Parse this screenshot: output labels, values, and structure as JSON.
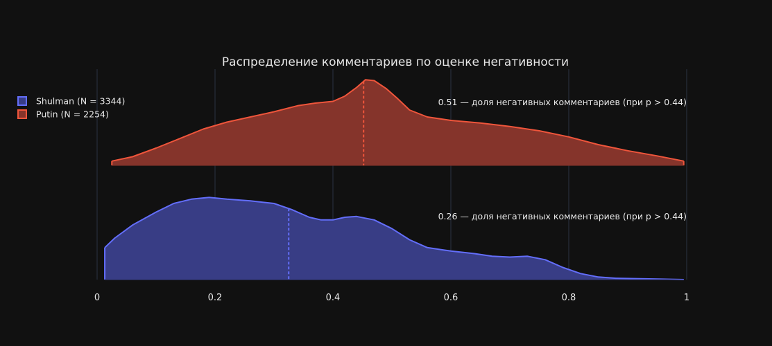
{
  "chart_data": {
    "type": "area",
    "title": "Распределение комментариев по оценке негативности",
    "xlabel": "",
    "ylabel": "",
    "xlim": [
      0,
      1
    ],
    "x_ticks": [
      {
        "value": 0,
        "label": "0"
      },
      {
        "value": 0.2,
        "label": "0.2"
      },
      {
        "value": 0.4,
        "label": "0.4"
      },
      {
        "value": 0.6,
        "label": "0.6"
      },
      {
        "value": 0.8,
        "label": "0.8"
      },
      {
        "value": 1,
        "label": "1"
      }
    ],
    "grid": true,
    "legend_position": "left",
    "series": [
      {
        "name": "Shulman (N = 3344)",
        "line_color": "#636efa",
        "fill_color": "#383d85",
        "mean": 0.325,
        "annotation": "0.26 — доля негативных комментариев (при p > 0.44)",
        "points": [
          [
            0.013,
            0.37
          ],
          [
            0.03,
            0.48
          ],
          [
            0.06,
            0.63
          ],
          [
            0.1,
            0.78
          ],
          [
            0.13,
            0.88
          ],
          [
            0.16,
            0.93
          ],
          [
            0.19,
            0.95
          ],
          [
            0.22,
            0.93
          ],
          [
            0.26,
            0.91
          ],
          [
            0.3,
            0.88
          ],
          [
            0.33,
            0.81
          ],
          [
            0.36,
            0.72
          ],
          [
            0.38,
            0.69
          ],
          [
            0.4,
            0.69
          ],
          [
            0.42,
            0.72
          ],
          [
            0.44,
            0.73
          ],
          [
            0.47,
            0.69
          ],
          [
            0.5,
            0.59
          ],
          [
            0.53,
            0.46
          ],
          [
            0.56,
            0.37
          ],
          [
            0.6,
            0.33
          ],
          [
            0.64,
            0.3
          ],
          [
            0.67,
            0.27
          ],
          [
            0.7,
            0.26
          ],
          [
            0.73,
            0.27
          ],
          [
            0.76,
            0.23
          ],
          [
            0.79,
            0.14
          ],
          [
            0.82,
            0.07
          ],
          [
            0.85,
            0.03
          ],
          [
            0.88,
            0.015
          ],
          [
            0.92,
            0.01
          ],
          [
            0.96,
            0.005
          ],
          [
            0.995,
            0.0
          ]
        ]
      },
      {
        "name": "Putin (N = 2254)",
        "line_color": "#ef553b",
        "fill_color": "#85342b",
        "mean": 0.452,
        "annotation": "0.51 — доля негативных комментариев (при p > 0.44)",
        "points": [
          [
            0.025,
            0.05
          ],
          [
            0.06,
            0.1
          ],
          [
            0.1,
            0.2
          ],
          [
            0.14,
            0.31
          ],
          [
            0.18,
            0.42
          ],
          [
            0.22,
            0.5
          ],
          [
            0.26,
            0.56
          ],
          [
            0.3,
            0.62
          ],
          [
            0.34,
            0.69
          ],
          [
            0.37,
            0.72
          ],
          [
            0.4,
            0.74
          ],
          [
            0.42,
            0.8
          ],
          [
            0.44,
            0.9
          ],
          [
            0.455,
            0.99
          ],
          [
            0.47,
            0.98
          ],
          [
            0.49,
            0.89
          ],
          [
            0.51,
            0.77
          ],
          [
            0.53,
            0.64
          ],
          [
            0.56,
            0.56
          ],
          [
            0.6,
            0.52
          ],
          [
            0.65,
            0.49
          ],
          [
            0.7,
            0.45
          ],
          [
            0.75,
            0.4
          ],
          [
            0.8,
            0.33
          ],
          [
            0.85,
            0.24
          ],
          [
            0.9,
            0.17
          ],
          [
            0.95,
            0.11
          ],
          [
            0.98,
            0.07
          ],
          [
            0.995,
            0.05
          ]
        ]
      }
    ]
  }
}
